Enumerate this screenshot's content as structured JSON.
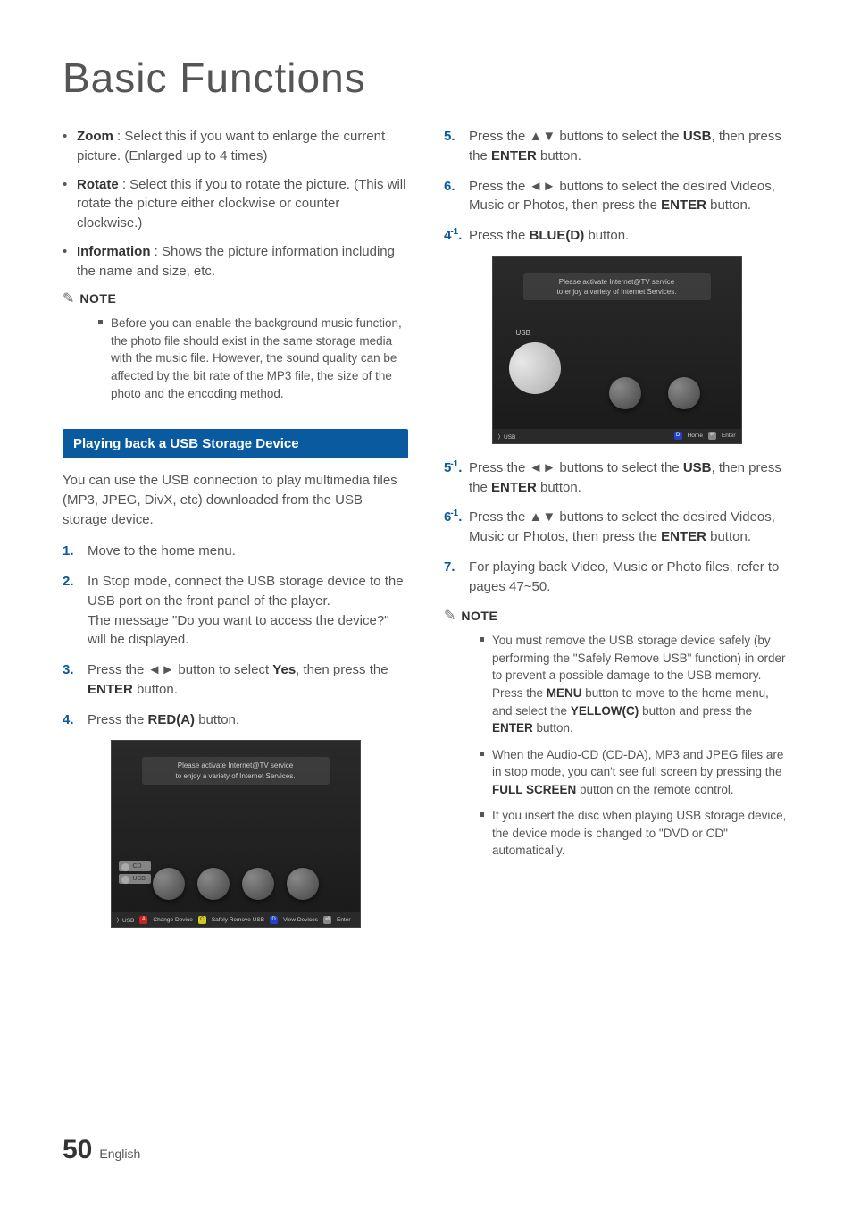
{
  "title": "Basic Functions",
  "page_number": "50",
  "page_language": "English",
  "colors": {
    "heading": "#555555",
    "body_text": "#555555",
    "bold_text": "#333333",
    "step_number": "#0a5aa0",
    "section_header_bg": "#0a5aa0",
    "section_header_text": "#ffffff",
    "key_a": "#cc2222",
    "key_c": "#cccc22",
    "key_d": "#2244cc"
  },
  "left_col": {
    "bullets": [
      {
        "term": "Zoom",
        "text": " : Select this if you want to enlarge the current picture. (Enlarged up to 4 times)"
      },
      {
        "term": "Rotate",
        "text": " : Select this if you to rotate the picture. (This will rotate the picture either clockwise or counter clockwise.)"
      },
      {
        "term": "Information",
        "text": " : Shows the picture information including the name and size, etc."
      }
    ],
    "note_label": "NOTE",
    "note_items": [
      "Before you can enable the background music function, the photo file should exist in the same storage media with the music file. However, the sound quality can be affected by the bit rate of the MP3 file, the size of the photo and the encoding method."
    ],
    "section_header": "Playing back a USB Storage Device",
    "intro": "You can use the USB connection to play multimedia files (MP3, JPEG, DivX, etc) downloaded from the USB storage device.",
    "steps": [
      {
        "num": "1.",
        "text": "Move to the home menu."
      },
      {
        "num": "2.",
        "text": "In Stop mode, connect the USB storage device to the USB port on the front panel of the player.\nThe message \"Do you want to access the device?\" will be displayed."
      },
      {
        "num": "3.",
        "pre": "Press the ◄► button to select ",
        "bold": "Yes",
        "post": ", then press the ",
        "bold2": "ENTER",
        "post2": " button."
      },
      {
        "num": "4.",
        "pre": "Press the ",
        "bold": "RED(A)",
        "post": " button."
      }
    ],
    "screenshot": {
      "banner_line1": "Please activate Internet@TV service",
      "banner_line2": "to enjoy a variety of Internet Services.",
      "side_items": [
        "CD",
        "USB"
      ],
      "bottombar": {
        "usb_label": "USB",
        "items": [
          {
            "key": "A",
            "label": "Change Device"
          },
          {
            "key": "C",
            "label": "Safely Remove USB"
          },
          {
            "key": "D",
            "label": "View Devices"
          },
          {
            "key": "⏎",
            "label": "Enter"
          }
        ]
      }
    }
  },
  "right_col": {
    "steps_top": [
      {
        "num": "5.",
        "pre": "Press the ▲▼ buttons to select the ",
        "bold": "USB",
        "post": ", then press the ",
        "bold2": "ENTER",
        "post2": " button."
      },
      {
        "num": "6.",
        "pre": "Press the ◄► buttons to select the desired Videos, Music or Photos, then press the ",
        "bold": "ENTER",
        "post": " button."
      },
      {
        "num": "4",
        "sup": "-1",
        "numpost": ".",
        "pre": "Press the ",
        "bold": "BLUE(D)",
        "post": " button."
      }
    ],
    "screenshot": {
      "banner_line1": "Please activate Internet@TV service",
      "banner_line2": "to enjoy a variety of Internet Services.",
      "usb_label": "USB",
      "bottombar": {
        "usb_label": "USB",
        "items": [
          {
            "key": "D",
            "label": "Home"
          },
          {
            "key": "⏎",
            "label": "Enter"
          }
        ]
      }
    },
    "steps_bottom": [
      {
        "num": "5",
        "sup": "-1",
        "numpost": ".",
        "pre": "Press the ◄► buttons to select the ",
        "bold": "USB",
        "post": ", then press the ",
        "bold2": "ENTER",
        "post2": " button."
      },
      {
        "num": "6",
        "sup": "-1",
        "numpost": ".",
        "pre": "Press the ▲▼ buttons to select the desired Videos, Music or Photos, then press the ",
        "bold": "ENTER",
        "post": " button."
      },
      {
        "num": "7.",
        "text": "For playing back Video, Music or Photo files, refer to pages 47~50."
      }
    ],
    "note_label": "NOTE",
    "note_items": [
      {
        "pre": "You must remove the USB storage device safely (by performing the \"Safely Remove USB\" function) in order to prevent a possible damage to the USB memory. Press the ",
        "bold1": "MENU",
        "mid1": " button to move to the home menu, and select the ",
        "bold2": "YELLOW(C)",
        "mid2": " button and press the ",
        "bold3": "ENTER",
        "post": " button."
      },
      {
        "pre": "When the Audio-CD (CD-DA), MP3 and JPEG files are in stop mode, you can't see full screen by pressing the ",
        "bold1": "FULL SCREEN",
        "post": " button on the remote control."
      },
      {
        "pre": "If you insert the disc when playing USB storage device, the device mode is changed to \"DVD or CD\" automatically."
      }
    ]
  }
}
